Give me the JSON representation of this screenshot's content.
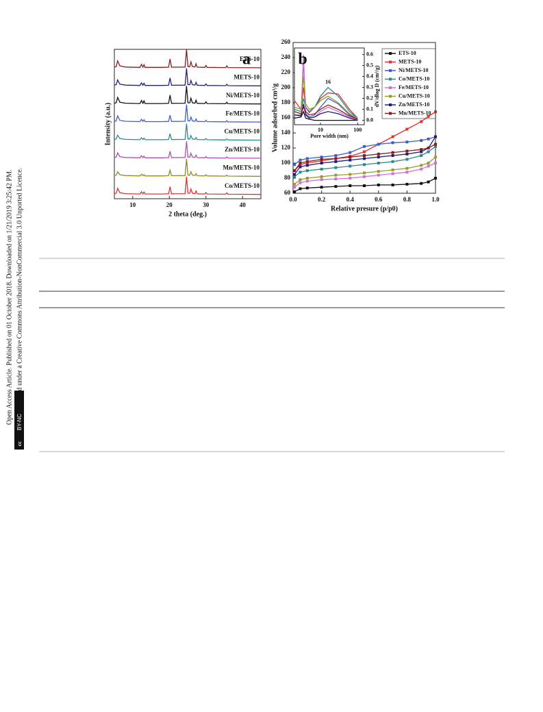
{
  "margin_note": {
    "line1": "Open Access Article. Published on 01 October 2018. Downloaded on 1/21/2019 3:25:42 PM.",
    "line2": "This article is licensed under a Creative Commons Attribution-NonCommercial 3.0 Unported Licence.",
    "badge_icon": "cc",
    "badge": "BY-NC"
  },
  "chart_data": [
    {
      "type": "line",
      "panel_label": "a",
      "x_label": "2 theta (deg.)",
      "y_label": "Intensity (a.u.)",
      "xlim": [
        5,
        45
      ],
      "xticks": [
        10,
        20,
        30,
        40
      ],
      "x": [
        5,
        5.5,
        5.9,
        6.5,
        8,
        12,
        12.4,
        12.8,
        13.1,
        13.4,
        18,
        19.8,
        20.2,
        20.6,
        24.3,
        24.7,
        25.1,
        25.6,
        25.9,
        26.3,
        27,
        27.3,
        27.6,
        29.7,
        30,
        30.3,
        35.4,
        35.7,
        36,
        45
      ],
      "series": [
        {
          "name": "ETS-10",
          "color": "#8b1a1a",
          "values": [
            8,
            10,
            40,
            14,
            8,
            6,
            22,
            7,
            20,
            6,
            6,
            7,
            50,
            7,
            8,
            100,
            10,
            10,
            35,
            10,
            8,
            25,
            7,
            6,
            16,
            6,
            5,
            14,
            5,
            4
          ]
        },
        {
          "name": "METS-10",
          "color": "#1f1f7a",
          "values": [
            8,
            10,
            35,
            13,
            8,
            6,
            20,
            7,
            18,
            6,
            6,
            7,
            45,
            7,
            8,
            95,
            10,
            10,
            32,
            10,
            8,
            22,
            7,
            6,
            14,
            6,
            5,
            12,
            5,
            4
          ]
        },
        {
          "name": "Ni/METS-10",
          "color": "#111111",
          "values": [
            8,
            10,
            38,
            13,
            8,
            6,
            22,
            7,
            20,
            6,
            6,
            7,
            50,
            7,
            8,
            98,
            10,
            10,
            34,
            10,
            8,
            24,
            7,
            6,
            15,
            6,
            5,
            13,
            5,
            4
          ]
        },
        {
          "name": "Fe/METS-10",
          "color": "#3a5fcd",
          "values": [
            8,
            10,
            36,
            13,
            8,
            6,
            18,
            7,
            16,
            6,
            6,
            7,
            40,
            7,
            8,
            95,
            10,
            10,
            30,
            10,
            8,
            20,
            7,
            6,
            13,
            6,
            5,
            11,
            5,
            4
          ]
        },
        {
          "name": "Cu/METS-10",
          "color": "#2a8a8a",
          "values": [
            8,
            10,
            30,
            12,
            8,
            6,
            16,
            7,
            14,
            6,
            6,
            7,
            38,
            7,
            8,
            90,
            10,
            10,
            28,
            10,
            8,
            18,
            7,
            6,
            12,
            6,
            5,
            10,
            5,
            4
          ]
        },
        {
          "name": "Zn/METS-10",
          "color": "#b04fb0",
          "values": [
            8,
            10,
            32,
            12,
            8,
            6,
            17,
            7,
            15,
            6,
            6,
            7,
            40,
            7,
            8,
            92,
            10,
            10,
            30,
            10,
            8,
            20,
            7,
            6,
            13,
            6,
            5,
            11,
            5,
            4
          ]
        },
        {
          "name": "Mn/METS-10",
          "color": "#8b8b2a",
          "values": [
            8,
            10,
            28,
            12,
            8,
            6,
            15,
            7,
            13,
            6,
            6,
            7,
            36,
            7,
            8,
            95,
            10,
            10,
            28,
            10,
            8,
            18,
            7,
            6,
            12,
            6,
            5,
            10,
            5,
            4
          ]
        },
        {
          "name": "Co/METS-10",
          "color": "#e03030",
          "values": [
            8,
            10,
            36,
            13,
            8,
            6,
            18,
            7,
            16,
            6,
            6,
            7,
            44,
            7,
            8,
            96,
            10,
            10,
            32,
            10,
            8,
            22,
            7,
            6,
            14,
            6,
            5,
            12,
            5,
            4
          ]
        }
      ]
    },
    {
      "type": "line",
      "panel_label": "b",
      "x_label": "Relative presure (p/p0)",
      "y_label": "Volume adsorbed cm³/g",
      "xlim": [
        0,
        1
      ],
      "xticks": [
        {
          "value": 0,
          "label": "0.0"
        },
        0.2,
        0.4,
        0.6,
        0.8,
        {
          "value": 1,
          "label": "1.0"
        }
      ],
      "ylim": [
        60,
        260
      ],
      "yticks": [
        60,
        80,
        100,
        120,
        140,
        160,
        180,
        200,
        220,
        240,
        260
      ],
      "x": [
        0.01,
        0.05,
        0.1,
        0.2,
        0.3,
        0.4,
        0.5,
        0.6,
        0.7,
        0.8,
        0.9,
        0.95,
        1.0
      ],
      "series": [
        {
          "name": "ETS-10",
          "color": "#111111",
          "values": [
            62,
            66,
            67,
            68,
            69,
            70,
            70,
            71,
            71,
            72,
            73,
            75,
            80
          ]
        },
        {
          "name": "METS-10",
          "color": "#e03030",
          "values": [
            90,
            98,
            100,
            103,
            106,
            109,
            115,
            125,
            135,
            145,
            155,
            162,
            168
          ]
        },
        {
          "name": "Ni/METS-10",
          "color": "#3a5fcd",
          "values": [
            98,
            104,
            106,
            108,
            110,
            114,
            122,
            125,
            127,
            128,
            130,
            132,
            135
          ]
        },
        {
          "name": "Co/METS-10",
          "color": "#2a8a8a",
          "values": [
            82,
            88,
            90,
            92,
            94,
            96,
            98,
            100,
            102,
            105,
            110,
            115,
            122
          ]
        },
        {
          "name": "Fe/METS-10",
          "color": "#d070d0",
          "values": [
            68,
            74,
            76,
            78,
            79,
            80,
            82,
            84,
            86,
            88,
            92,
            96,
            100
          ]
        },
        {
          "name": "Cu/METS-10",
          "color": "#9a9a30",
          "values": [
            72,
            78,
            80,
            82,
            84,
            85,
            87,
            89,
            91,
            93,
            97,
            100,
            108
          ]
        },
        {
          "name": "Zn/METS-10",
          "color": "#1f1f7a",
          "values": [
            85,
            95,
            97,
            100,
            102,
            104,
            106,
            108,
            110,
            112,
            115,
            120,
            135
          ]
        },
        {
          "name": "Mn/METS-10",
          "color": "#8b1a1a",
          "values": [
            90,
            100,
            102,
            105,
            106,
            108,
            110,
            112,
            114,
            116,
            118,
            120,
            125
          ]
        }
      ]
    },
    {
      "type": "line",
      "x_label": "Pore width (nm)",
      "y_label": "dV/dlog D (cm³/g)",
      "annotation": "16",
      "log_x": true,
      "xlim": [
        2,
        150
      ],
      "xticks": [
        10,
        100
      ],
      "ylim": [
        -0.04,
        0.66
      ],
      "yticks": [
        {
          "value": 0,
          "label": "0.0"
        },
        0.1,
        0.2,
        0.3,
        0.4,
        0.5,
        0.6
      ],
      "x": [
        2,
        3,
        3.5,
        4,
        5,
        7,
        10,
        16,
        30,
        60,
        100
      ],
      "series": [
        {
          "name": "ETS-10",
          "color": "#111111",
          "values": [
            0.02,
            0.03,
            0.08,
            0.02,
            0.01,
            0,
            0,
            0,
            0,
            0,
            0
          ]
        },
        {
          "name": "METS-10",
          "color": "#e03030",
          "values": [
            0.18,
            0.1,
            0.3,
            0.12,
            0.07,
            0.12,
            0.2,
            0.25,
            0.24,
            0.1,
            0.02
          ]
        },
        {
          "name": "Ni/METS-10",
          "color": "#3a5fcd",
          "values": [
            0.05,
            0.05,
            0.55,
            0.06,
            0.03,
            0.05,
            0.12,
            0.2,
            0.15,
            0.05,
            0.01
          ]
        },
        {
          "name": "Co/METS-10",
          "color": "#2a8a8a",
          "values": [
            0.1,
            0.08,
            0.2,
            0.12,
            0.08,
            0.12,
            0.22,
            0.3,
            0.22,
            0.08,
            0.02
          ]
        },
        {
          "name": "Fe/METS-10",
          "color": "#d070d0",
          "values": [
            0.05,
            0.05,
            0.6,
            0.05,
            0.02,
            0.03,
            0.08,
            0.12,
            0.08,
            0.03,
            0
          ]
        },
        {
          "name": "Cu/METS-10",
          "color": "#9a9a30",
          "values": [
            0.12,
            0.1,
            0.4,
            0.15,
            0.1,
            0.12,
            0.18,
            0.22,
            0.16,
            0.06,
            0.02
          ]
        },
        {
          "name": "Zn/METS-10",
          "color": "#1f1f7a",
          "values": [
            0.05,
            0.04,
            0.15,
            0.05,
            0.02,
            0.03,
            0.06,
            0.08,
            0.06,
            0.02,
            0
          ]
        },
        {
          "name": "Mn/METS-10",
          "color": "#8b1a1a",
          "values": [
            0.08,
            0.06,
            0.12,
            0.08,
            0.05,
            0.06,
            0.1,
            0.14,
            0.1,
            0.04,
            0.01
          ]
        }
      ]
    }
  ]
}
